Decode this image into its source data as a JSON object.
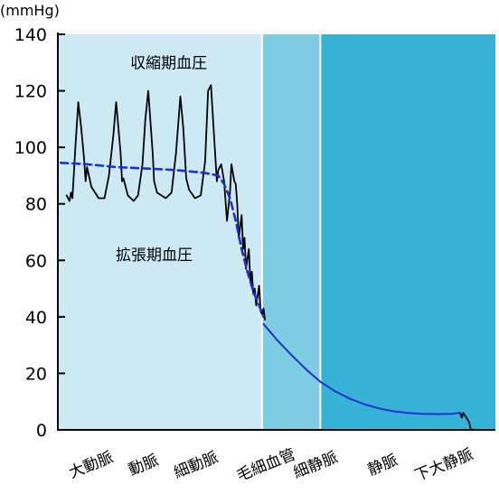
{
  "chart_data": {
    "type": "line",
    "title": "",
    "unit_label": "(mmHg)",
    "ylim": [
      0,
      140
    ],
    "yticks": [
      0,
      20,
      40,
      60,
      80,
      100,
      120,
      140
    ],
    "grid": false,
    "regions": [
      {
        "x_start": 0,
        "x_end": 0.7,
        "color": "#cde9f4"
      },
      {
        "x_start": 0.7,
        "x_end": 0.9,
        "color": "#7ecde3"
      },
      {
        "x_start": 0.9,
        "x_end": 1.5,
        "color": "#36b2d6"
      }
    ],
    "categories": [
      {
        "label": "大動脈",
        "x": 0.12
      },
      {
        "label": "動脈",
        "x": 0.3
      },
      {
        "label": "細動脈",
        "x": 0.48
      },
      {
        "label": "毛細血管",
        "x": 0.72
      },
      {
        "label": "細静脈",
        "x": 0.89
      },
      {
        "label": "静脈",
        "x": 1.12
      },
      {
        "label": "下大静脈",
        "x": 1.33
      }
    ],
    "annotations": [
      {
        "text": "収縮期血圧",
        "x": 0.38,
        "y": 130
      },
      {
        "text": "拡張期血圧",
        "x": 0.33,
        "y": 62
      }
    ],
    "series": [
      {
        "style": "solid-black",
        "points": [
          [
            0.03,
            83
          ],
          [
            0.04,
            81
          ],
          [
            0.045,
            84
          ],
          [
            0.05,
            82
          ],
          [
            0.06,
            100
          ],
          [
            0.07,
            116
          ],
          [
            0.08,
            107
          ],
          [
            0.09,
            96
          ],
          [
            0.095,
            88
          ],
          [
            0.1,
            93
          ],
          [
            0.115,
            86
          ],
          [
            0.14,
            82
          ],
          [
            0.16,
            82
          ],
          [
            0.175,
            90
          ],
          [
            0.19,
            104
          ],
          [
            0.2,
            116
          ],
          [
            0.215,
            98
          ],
          [
            0.22,
            88
          ],
          [
            0.225,
            89
          ],
          [
            0.24,
            83
          ],
          [
            0.26,
            81
          ],
          [
            0.275,
            83
          ],
          [
            0.29,
            94
          ],
          [
            0.3,
            110
          ],
          [
            0.31,
            120
          ],
          [
            0.325,
            98
          ],
          [
            0.33,
            88
          ],
          [
            0.34,
            84
          ],
          [
            0.37,
            82
          ],
          [
            0.39,
            84
          ],
          [
            0.405,
            98
          ],
          [
            0.42,
            118
          ],
          [
            0.43,
            107
          ],
          [
            0.44,
            89
          ],
          [
            0.45,
            85
          ],
          [
            0.47,
            82
          ],
          [
            0.49,
            83
          ],
          [
            0.505,
            95
          ],
          [
            0.515,
            120
          ],
          [
            0.525,
            122
          ],
          [
            0.535,
            105
          ],
          [
            0.545,
            88
          ],
          [
            0.55,
            92
          ],
          [
            0.56,
            94
          ],
          [
            0.57,
            88
          ],
          [
            0.58,
            74
          ],
          [
            0.59,
            84
          ],
          [
            0.595,
            94
          ],
          [
            0.605,
            88
          ],
          [
            0.61,
            87
          ],
          [
            0.615,
            80
          ],
          [
            0.62,
            68
          ],
          [
            0.63,
            76
          ],
          [
            0.635,
            64
          ],
          [
            0.64,
            68
          ],
          [
            0.645,
            57
          ],
          [
            0.655,
            64
          ],
          [
            0.66,
            52
          ],
          [
            0.665,
            56
          ],
          [
            0.67,
            48
          ],
          [
            0.675,
            50
          ],
          [
            0.68,
            44
          ],
          [
            0.69,
            51
          ],
          [
            0.695,
            42
          ],
          [
            0.7,
            41
          ],
          [
            0.705,
            43
          ],
          [
            0.71,
            39
          ]
        ]
      },
      {
        "style": "dashed-blue",
        "points": [
          [
            0.01,
            94.5
          ],
          [
            0.1,
            94
          ],
          [
            0.2,
            93
          ],
          [
            0.3,
            92.5
          ],
          [
            0.4,
            92
          ],
          [
            0.5,
            91
          ],
          [
            0.55,
            90
          ],
          [
            0.57,
            87
          ],
          [
            0.59,
            82
          ],
          [
            0.61,
            74
          ],
          [
            0.63,
            64
          ],
          [
            0.65,
            56
          ],
          [
            0.67,
            49
          ],
          [
            0.69,
            44
          ],
          [
            0.705,
            40
          ]
        ]
      },
      {
        "style": "solid-blue",
        "points": [
          [
            0.705,
            37.5
          ],
          [
            0.75,
            32
          ],
          [
            0.8,
            26.6
          ],
          [
            0.85,
            21.5
          ],
          [
            0.9,
            17
          ],
          [
            0.95,
            13.7
          ],
          [
            1.0,
            11.1
          ],
          [
            1.05,
            9.1
          ],
          [
            1.1,
            7.6
          ],
          [
            1.15,
            6.6
          ],
          [
            1.2,
            6.0
          ],
          [
            1.25,
            5.7
          ],
          [
            1.3,
            5.6
          ],
          [
            1.35,
            5.7
          ],
          [
            1.38,
            6.0
          ]
        ]
      },
      {
        "style": "solid-black",
        "points": [
          [
            1.38,
            5.8
          ],
          [
            1.385,
            4.3
          ],
          [
            1.39,
            6.0
          ],
          [
            1.395,
            5.1
          ],
          [
            1.4,
            4.5
          ],
          [
            1.41,
            2.7
          ],
          [
            1.415,
            0.5
          ]
        ]
      }
    ]
  }
}
